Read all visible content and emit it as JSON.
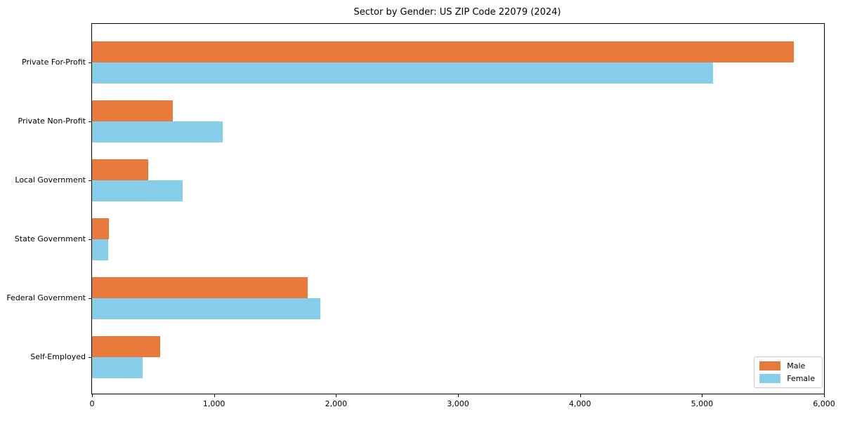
{
  "chart_data": {
    "type": "bar",
    "orientation": "horizontal",
    "title": "Sector by Gender: US ZIP Code 22079 (2024)",
    "xlabel": "",
    "ylabel": "",
    "categories": [
      "Private For-Profit",
      "Private Non-Profit",
      "Local Government",
      "State Government",
      "Federal Government",
      "Self-Employed"
    ],
    "series": [
      {
        "name": "Male",
        "color": "#e87a3c",
        "values": [
          5750,
          660,
          460,
          140,
          1770,
          560
        ]
      },
      {
        "name": "Female",
        "color": "#87ceeb",
        "values": [
          5090,
          1070,
          740,
          130,
          1870,
          415
        ]
      }
    ],
    "xlim": [
      0,
      6000
    ],
    "xticks": [
      0,
      1000,
      2000,
      3000,
      4000,
      5000,
      6000
    ],
    "xtick_labels": [
      "0",
      "1,000",
      "2,000",
      "3,000",
      "4,000",
      "5,000",
      "6,000"
    ],
    "grid": false,
    "legend_position": "lower right",
    "legend_entries": [
      "Male",
      "Female"
    ]
  }
}
